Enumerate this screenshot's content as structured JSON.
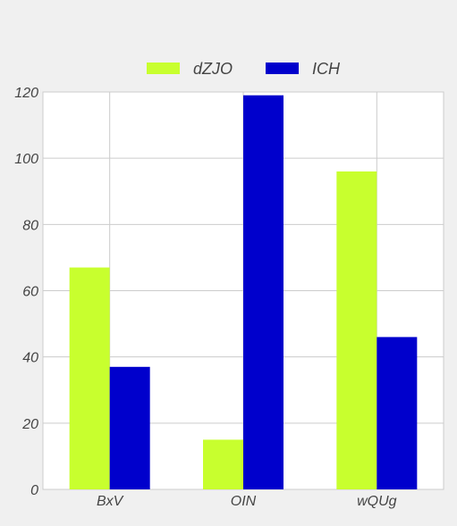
{
  "chart_data": {
    "type": "bar",
    "categories": [
      "BxV",
      "OIN",
      "wQUg"
    ],
    "series": [
      {
        "name": "dZJO",
        "values": [
          67,
          15,
          96
        ],
        "color": "#c8ff2e"
      },
      {
        "name": "ICH",
        "values": [
          37,
          119,
          46
        ],
        "color": "#0000cc"
      }
    ],
    "ylim": [
      0,
      120
    ],
    "yticks": [
      0,
      20,
      40,
      60,
      80,
      100,
      120
    ],
    "grid": true,
    "legend_position": "top-center",
    "title": "",
    "xlabel": "",
    "ylabel": ""
  }
}
